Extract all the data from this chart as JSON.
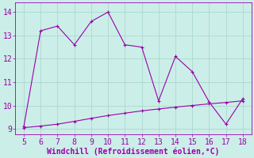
{
  "x_upper": [
    5,
    6,
    7,
    8,
    9,
    10,
    11,
    12,
    13,
    14,
    15,
    16,
    17,
    18
  ],
  "y_upper": [
    9.1,
    13.2,
    13.4,
    12.6,
    13.6,
    14.0,
    12.6,
    12.5,
    10.2,
    12.1,
    11.45,
    10.15,
    9.2,
    10.3
  ],
  "x_lower": [
    5,
    6,
    7,
    8,
    9,
    10,
    11,
    12,
    13,
    14,
    15,
    16,
    17,
    18
  ],
  "y_lower": [
    9.05,
    9.12,
    9.2,
    9.32,
    9.45,
    9.57,
    9.67,
    9.77,
    9.85,
    9.93,
    10.0,
    10.07,
    10.13,
    10.2
  ],
  "line_color": "#9900aa",
  "bg_color": "#cceee8",
  "grid_color": "#aad8d0",
  "xlabel": "Windchill (Refroidissement éolien,°C)",
  "xlim": [
    4.5,
    18.5
  ],
  "ylim": [
    8.75,
    14.4
  ],
  "xticks": [
    5,
    6,
    7,
    8,
    9,
    10,
    11,
    12,
    13,
    14,
    15,
    16,
    17,
    18
  ],
  "yticks": [
    9,
    10,
    11,
    12,
    13,
    14
  ],
  "xlabel_fontsize": 7,
  "tick_fontsize": 7,
  "marker_size": 2.5,
  "linewidth": 0.8
}
